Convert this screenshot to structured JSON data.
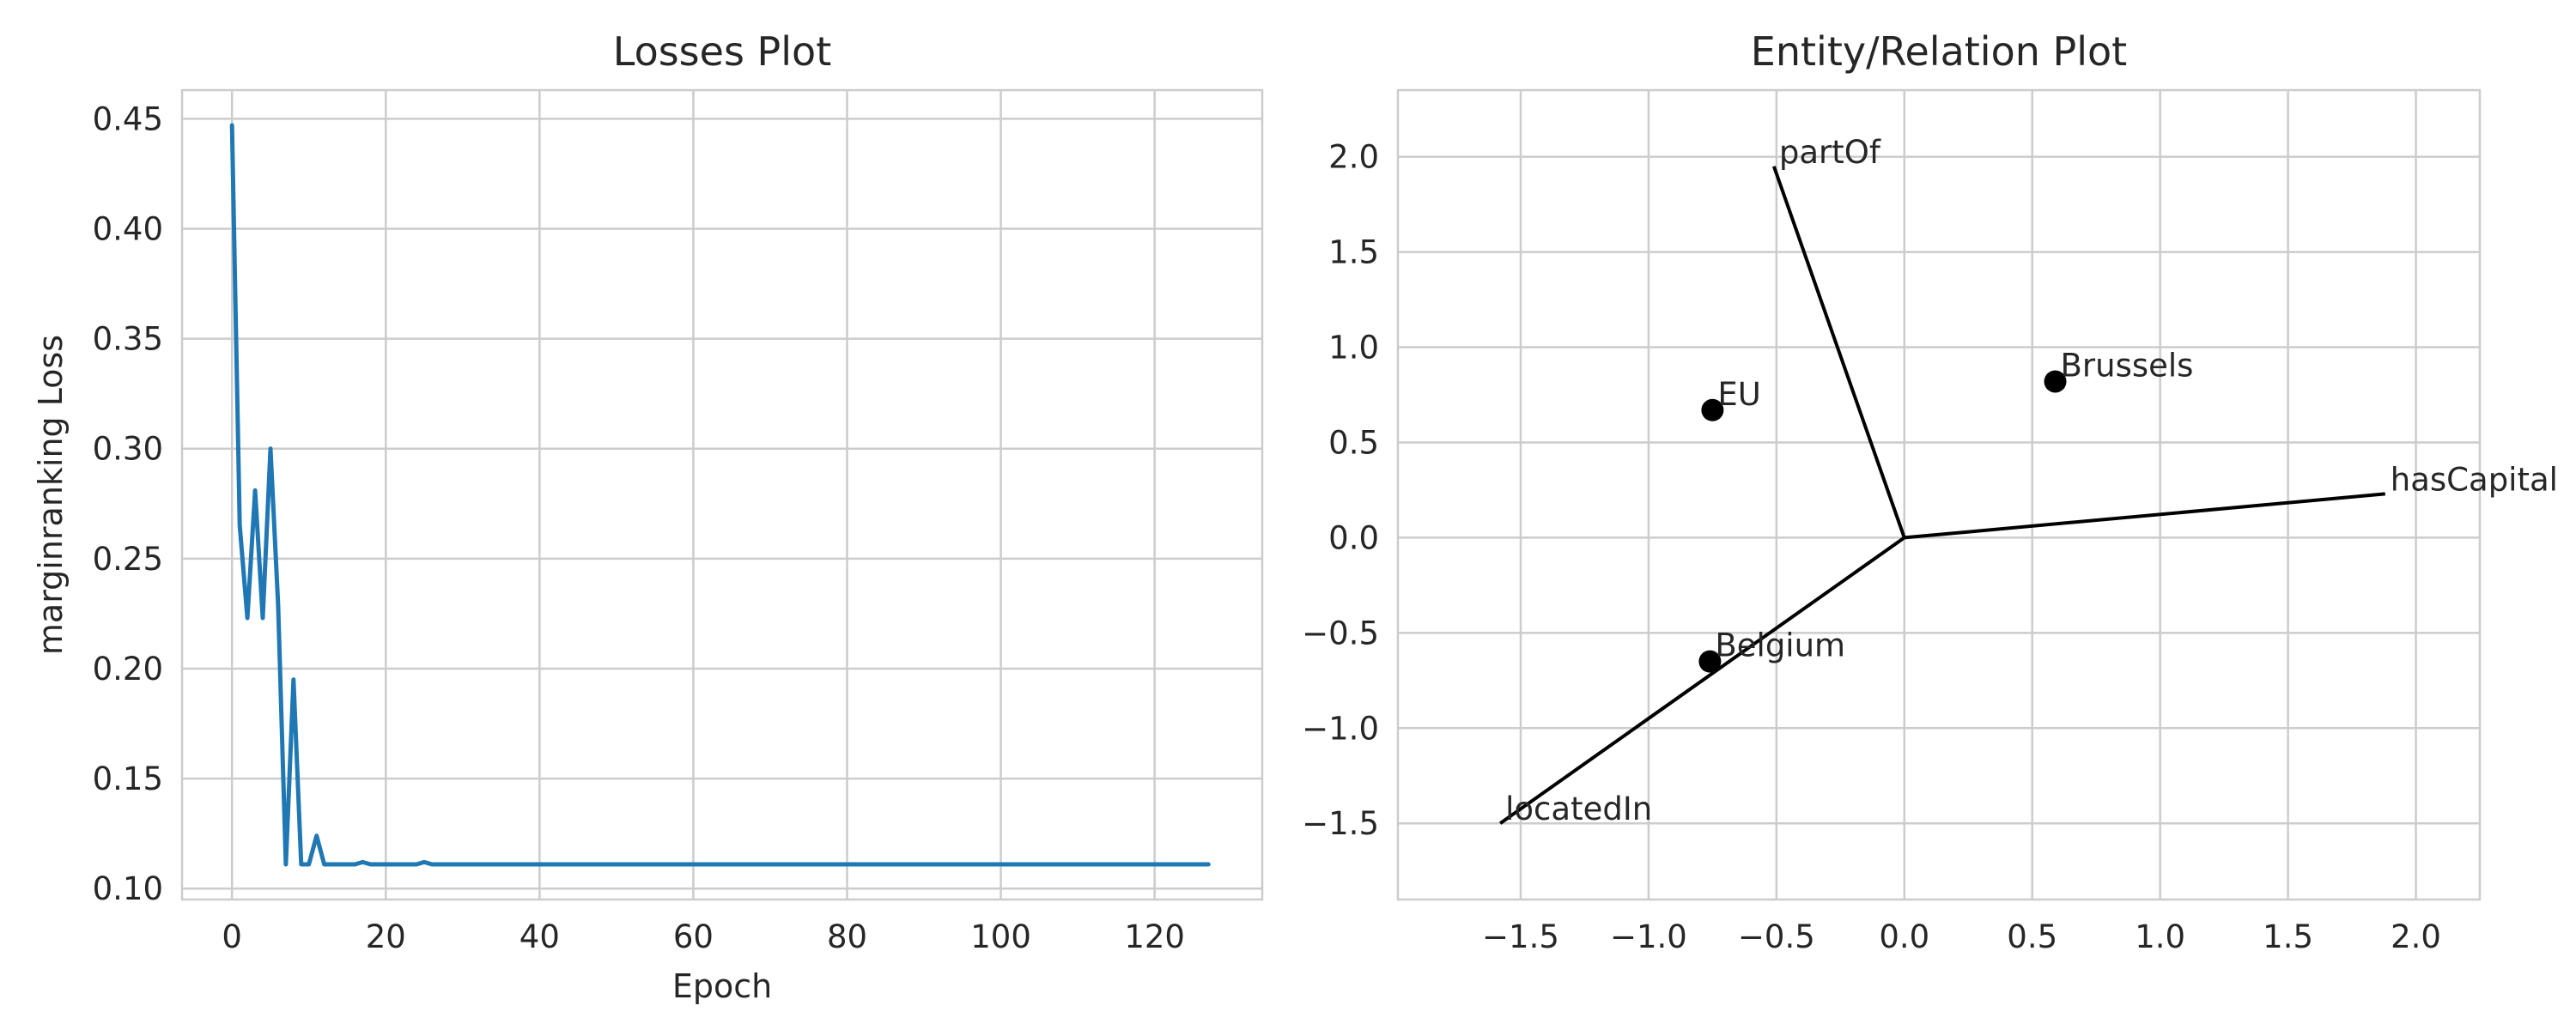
{
  "chart_data": [
    {
      "type": "line",
      "title": "Losses Plot",
      "xlabel": "Epoch",
      "ylabel": "marginranking Loss",
      "xlim": [
        -6.5,
        134
      ],
      "ylim": [
        0.095,
        0.463
      ],
      "xticks": [
        0,
        20,
        40,
        60,
        80,
        100,
        120
      ],
      "yticks": [
        0.1,
        0.15,
        0.2,
        0.25,
        0.3,
        0.35,
        0.4,
        0.45
      ],
      "ytick_labels": [
        "0.10",
        "0.15",
        "0.20",
        "0.25",
        "0.30",
        "0.35",
        "0.40",
        "0.45"
      ],
      "grid": true,
      "color": "#1f77b4",
      "series": [
        {
          "x": [
            0,
            1,
            2,
            3,
            4,
            5,
            6,
            7,
            8,
            9,
            10,
            11,
            12,
            13,
            14,
            15,
            16,
            17,
            18,
            19,
            20,
            21,
            22,
            23,
            24,
            25,
            26,
            27,
            28,
            30,
            40,
            60,
            80,
            100,
            120,
            127
          ],
          "y": [
            0.447,
            0.265,
            0.223,
            0.281,
            0.223,
            0.3,
            0.229,
            0.111,
            0.195,
            0.111,
            0.111,
            0.124,
            0.111,
            0.111,
            0.111,
            0.111,
            0.111,
            0.112,
            0.111,
            0.111,
            0.111,
            0.111,
            0.111,
            0.111,
            0.111,
            0.112,
            0.111,
            0.111,
            0.111,
            0.111,
            0.111,
            0.111,
            0.111,
            0.111,
            0.111,
            0.111
          ]
        }
      ]
    },
    {
      "type": "scatter",
      "title": "Entity/Relation Plot",
      "xlabel": "",
      "ylabel": "",
      "xlim": [
        -1.98,
        2.25
      ],
      "ylim": [
        -1.9,
        2.35
      ],
      "xticks": [
        -1.5,
        -1.0,
        -0.5,
        0.0,
        0.5,
        1.0,
        1.5,
        2.0
      ],
      "xtick_labels": [
        "−1.5",
        "−1.0",
        "−0.5",
        "0.0",
        "0.5",
        "1.0",
        "1.5",
        "2.0"
      ],
      "yticks": [
        -1.5,
        -1.0,
        -0.5,
        0.0,
        0.5,
        1.0,
        1.5,
        2.0
      ],
      "ytick_labels": [
        "−1.5",
        "−1.0",
        "−0.5",
        "0.0",
        "0.5",
        "1.0",
        "1.5",
        "2.0"
      ],
      "grid": true,
      "entities": [
        {
          "name": "EU",
          "x": -0.75,
          "y": 0.67
        },
        {
          "name": "Brussels",
          "x": 0.59,
          "y": 0.82
        },
        {
          "name": "Belgium",
          "x": -0.76,
          "y": -0.65
        }
      ],
      "relations": [
        {
          "name": "partOf",
          "x": -0.51,
          "y": 1.95
        },
        {
          "name": "hasCapital",
          "x": 1.88,
          "y": 0.23
        },
        {
          "name": "locatedIn",
          "x": -1.58,
          "y": -1.5
        }
      ],
      "marker_color": "#000000",
      "line_color": "#000000"
    }
  ]
}
